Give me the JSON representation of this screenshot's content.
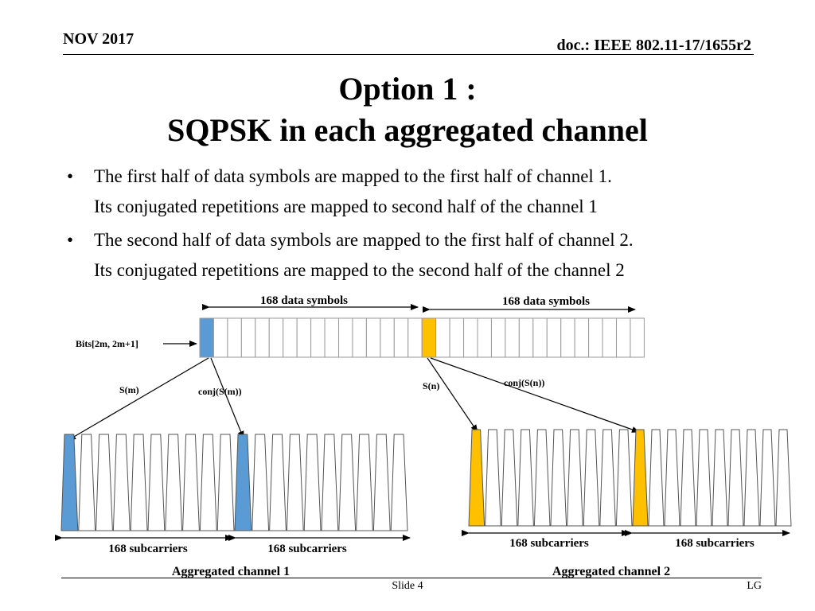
{
  "header": {
    "date": "NOV 2017",
    "doc": "doc.: IEEE 802.11-17/1655r2"
  },
  "title": {
    "line1": "Option 1 :",
    "line2": "SQPSK in each aggregated channel"
  },
  "bullets": [
    {
      "marker": "•",
      "line1": "The first half of data symbols are mapped to the first half of channel 1.",
      "line2": "Its conjugated repetitions are mapped to second half of the channel 1"
    },
    {
      "marker": "•",
      "line1": "The second half of data symbols are mapped to the first half of channel 2.",
      "line2": "Its conjugated repetitions are mapped to the second half of the channel 2"
    }
  ],
  "diagram": {
    "symbols_left_label": "168 data symbols",
    "symbols_right_label": "168 data symbols",
    "bits_label": "Bits[2m, 2m+1]",
    "s_m": "S(m)",
    "conj_s_m": "conj(S(m))",
    "s_n": "S(n)",
    "conj_s_n": "conj(S(n))",
    "sub1": "168 subcarriers",
    "sub2": "168 subcarriers",
    "sub3": "168 subcarriers",
    "sub4": "168 subcarriers",
    "channel1": "Aggregated channel 1",
    "channel2": "Aggregated channel 2",
    "colors": {
      "blue": "#5b9bd5",
      "gold": "#ffc000"
    }
  },
  "footer": {
    "slide": "Slide 4",
    "author": "LG"
  }
}
